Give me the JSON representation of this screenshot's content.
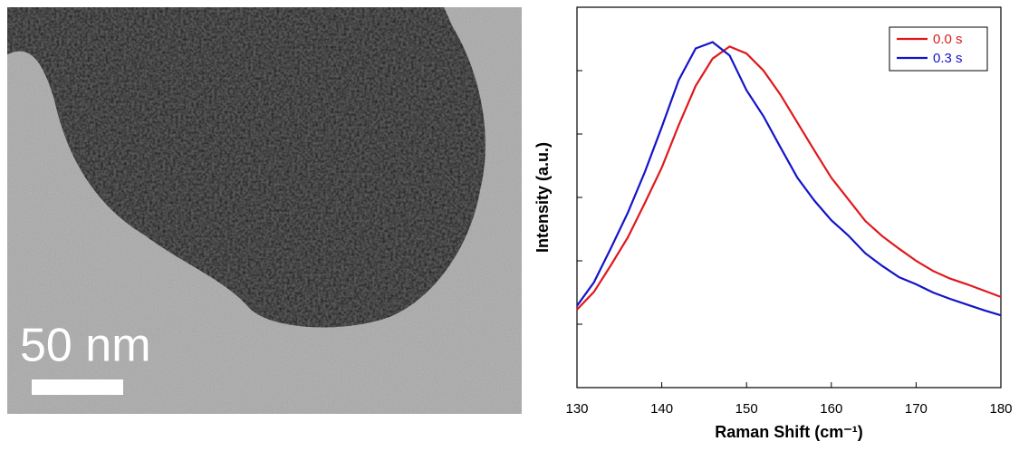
{
  "micrograph": {
    "scale_bar": "50 nm"
  },
  "chart_data": {
    "type": "line",
    "xlabel": "Raman Shift (cm⁻¹)",
    "ylabel": "Intensity (a.u.)",
    "x": [
      130,
      132,
      134,
      136,
      138,
      140,
      142,
      144,
      146,
      148,
      150,
      152,
      154,
      156,
      158,
      160,
      162,
      164,
      166,
      168,
      170,
      172,
      174,
      176,
      178,
      180
    ],
    "series": [
      {
        "name": "0.0 s",
        "color": "#e0181c",
        "values": [
          1.23,
          1.51,
          1.93,
          2.37,
          2.91,
          3.47,
          4.14,
          4.76,
          5.19,
          5.38,
          5.27,
          5.0,
          4.62,
          4.18,
          3.74,
          3.31,
          2.97,
          2.63,
          2.39,
          2.19,
          2.0,
          1.84,
          1.72,
          1.63,
          1.53,
          1.43
        ]
      },
      {
        "name": "0.3 s",
        "color": "#1414c8",
        "values": [
          1.29,
          1.66,
          2.2,
          2.76,
          3.4,
          4.11,
          4.85,
          5.35,
          5.45,
          5.24,
          4.69,
          4.28,
          3.79,
          3.31,
          2.95,
          2.64,
          2.4,
          2.12,
          1.92,
          1.74,
          1.63,
          1.5,
          1.4,
          1.31,
          1.22,
          1.14
        ]
      }
    ],
    "xlim": [
      130,
      180
    ],
    "xticks": [
      130,
      140,
      150,
      160,
      170,
      180
    ],
    "ylim": [
      0,
      6
    ],
    "yticks": [
      1,
      2,
      3,
      4,
      5
    ],
    "legend": "top-right"
  }
}
